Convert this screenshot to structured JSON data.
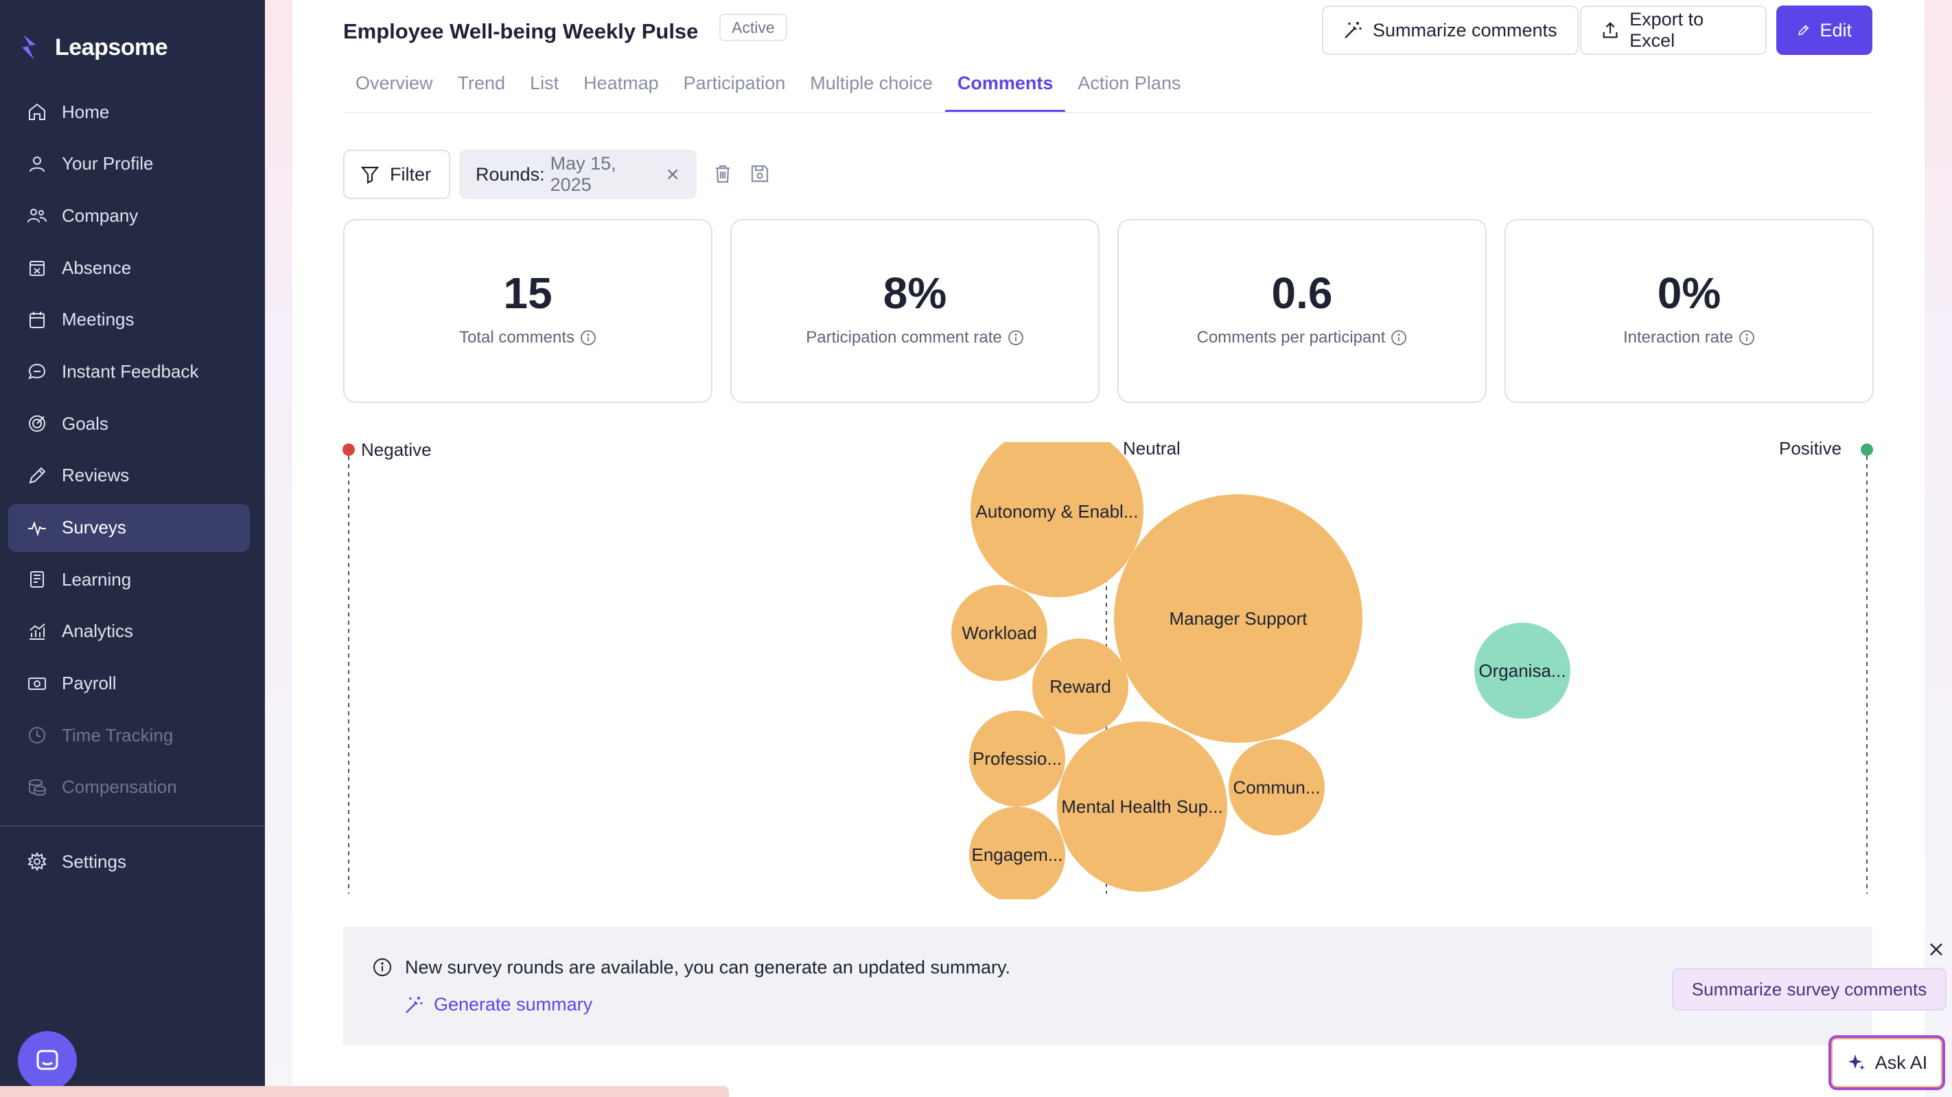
{
  "app": {
    "brand": "Leapsome"
  },
  "sidebar": {
    "items": [
      {
        "label": "Home",
        "icon": "home-icon"
      },
      {
        "label": "Your Profile",
        "icon": "user-icon"
      },
      {
        "label": "Company",
        "icon": "people-icon"
      },
      {
        "label": "Absence",
        "icon": "calendar-x-icon"
      },
      {
        "label": "Meetings",
        "icon": "calendar-icon"
      },
      {
        "label": "Instant Feedback",
        "icon": "chat-icon"
      },
      {
        "label": "Goals",
        "icon": "target-icon"
      },
      {
        "label": "Reviews",
        "icon": "pencil-icon"
      },
      {
        "label": "Surveys",
        "icon": "pulse-icon",
        "active": true
      },
      {
        "label": "Learning",
        "icon": "book-icon"
      },
      {
        "label": "Analytics",
        "icon": "analytics-icon"
      },
      {
        "label": "Payroll",
        "icon": "money-icon"
      },
      {
        "label": "Time Tracking",
        "icon": "clock-icon",
        "disabled": true
      },
      {
        "label": "Compensation",
        "icon": "coins-icon",
        "disabled": true
      }
    ],
    "settings": "Settings"
  },
  "header": {
    "title": "Employee Well-being Weekly Pulse",
    "status": "Active",
    "summarize_label": "Summarize comments",
    "export_label": "Export to Excel",
    "edit_label": "Edit"
  },
  "tabs": [
    "Overview",
    "Trend",
    "List",
    "Heatmap",
    "Participation",
    "Multiple choice",
    "Comments",
    "Action Plans"
  ],
  "active_tab": "Comments",
  "filters": {
    "filter_label": "Filter",
    "chip_key": "Rounds:",
    "chip_value": "May 15, 2025"
  },
  "stats": [
    {
      "value": "15",
      "label": "Total comments"
    },
    {
      "value": "8%",
      "label": "Participation comment rate"
    },
    {
      "value": "0.6",
      "label": "Comments per participant"
    },
    {
      "value": "0%",
      "label": "Interaction rate"
    }
  ],
  "sentiment_chart": {
    "negative_label": "Negative",
    "neutral_label": "Neutral",
    "positive_label": "Positive",
    "colors": {
      "negative": "#d8453c",
      "positive": "#3fae76",
      "neutral_bubble": "#f3bb6d",
      "positive_bubble": "#8fdcc2"
    },
    "bubbles": [
      {
        "label": "Autonomy & Enabl...",
        "tone": "neutral"
      },
      {
        "label": "Manager Support",
        "tone": "neutral"
      },
      {
        "label": "Workload",
        "tone": "neutral"
      },
      {
        "label": "Reward",
        "tone": "neutral"
      },
      {
        "label": "Professio...",
        "tone": "neutral"
      },
      {
        "label": "Mental Health Sup...",
        "tone": "neutral"
      },
      {
        "label": "Commun...",
        "tone": "neutral"
      },
      {
        "label": "Engagem...",
        "tone": "neutral"
      },
      {
        "label": "Organisa...",
        "tone": "positive"
      }
    ]
  },
  "banner": {
    "message": "New survey rounds are available, you can generate an updated summary.",
    "link": "Generate summary"
  },
  "tooltip": "Summarize survey comments",
  "ask_ai": "Ask AI"
}
